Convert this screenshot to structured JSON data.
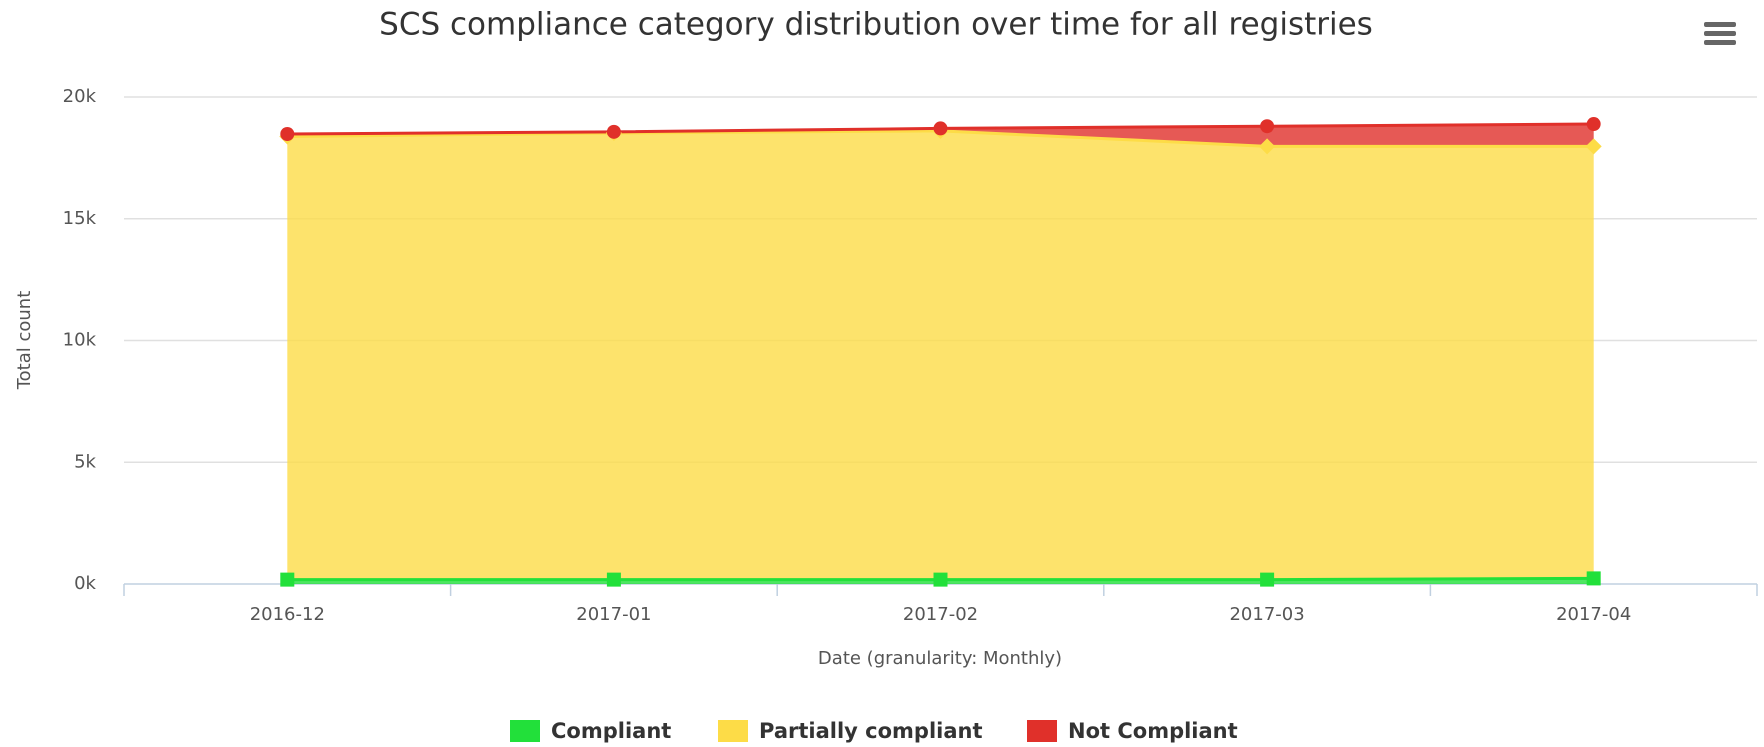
{
  "chart_data": {
    "type": "area",
    "stacked": true,
    "title": "SCS compliance category distribution over time for all registries",
    "x_label": "Date (granularity: Monthly)",
    "y_label": "Total count",
    "categories": [
      "2016-12",
      "2017-01",
      "2017-02",
      "2017-03",
      "2017-04"
    ],
    "series": [
      {
        "name": "Compliant",
        "color": "#22e03a",
        "marker": "square",
        "values": [
          180,
          180,
          180,
          180,
          230
        ]
      },
      {
        "name": "Partially compliant",
        "color": "#fddc47",
        "marker": "diamond",
        "values": [
          18200,
          18340,
          18430,
          17790,
          17740
        ]
      },
      {
        "name": "Not Compliant",
        "color": "#e0302a",
        "marker": "circle",
        "values": [
          100,
          50,
          100,
          830,
          920
        ]
      }
    ],
    "ylim": [
      0,
      20000
    ],
    "yticks": [
      {
        "value": 0,
        "label": "0k"
      },
      {
        "value": 5000,
        "label": "5k"
      },
      {
        "value": 10000,
        "label": "10k"
      },
      {
        "value": 15000,
        "label": "15k"
      },
      {
        "value": 20000,
        "label": "20k"
      }
    ],
    "grid": true,
    "legend": "bottom"
  }
}
